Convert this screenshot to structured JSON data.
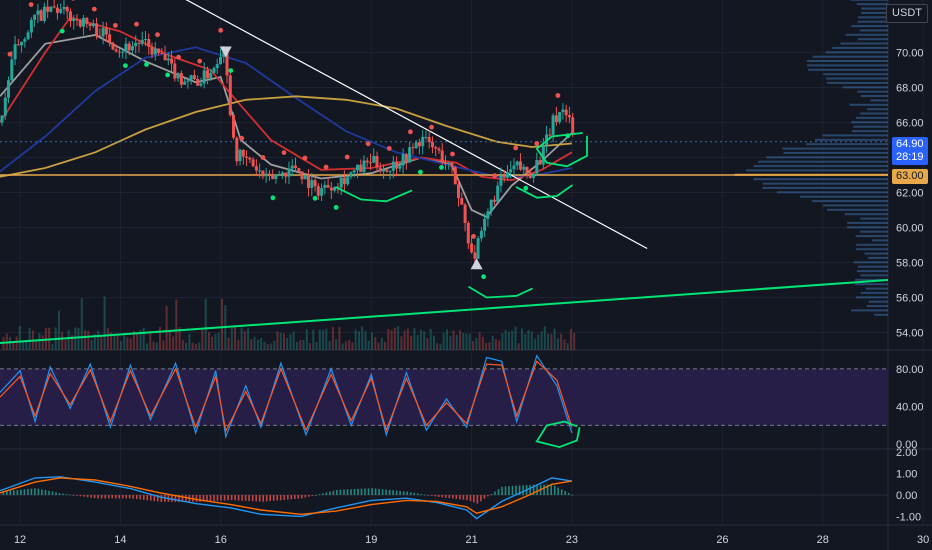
{
  "header": {
    "currency": "USDT"
  },
  "price_badges": {
    "last_price": "64.90",
    "countdown": "28:19",
    "level": "63.00"
  },
  "colors": {
    "background": "#131722",
    "grid": "#1e2230",
    "up": "#26a69a",
    "down": "#ef5350",
    "ma_fast": "#9e9e9e",
    "ma_mid": "#d32f2f",
    "ma_slow": "#1e3a9e",
    "ma_long": "#c9a040",
    "trendline": "#ffffff",
    "support": "#00e676",
    "level": "#e8a94b",
    "stoch_k": "#2196f3",
    "stoch_d": "#ff5722",
    "stoch_band": "#2a1f4d",
    "macd": "#2196f3",
    "signal": "#ff6d00",
    "annot": "#00e676",
    "profile": "#3d6fa8"
  },
  "chart_data": [
    {
      "type": "candlestick",
      "title": "",
      "ylim": [
        53,
        73
      ],
      "y_ticks": [
        "54.00",
        "56.00",
        "58.00",
        "60.00",
        "62.00",
        "64.00",
        "66.00",
        "68.00",
        "70.00"
      ],
      "x_range": [
        11.6,
        29.3
      ],
      "x_ticks": [
        {
          "x": 12,
          "label": "12"
        },
        {
          "x": 14,
          "label": "14"
        },
        {
          "x": 16,
          "label": "16"
        },
        {
          "x": 19,
          "label": "19"
        },
        {
          "x": 21,
          "label": "21"
        },
        {
          "x": 23,
          "label": "23"
        },
        {
          "x": 26,
          "label": "26"
        },
        {
          "x": 28,
          "label": "28"
        },
        {
          "x": 30,
          "label": "30"
        }
      ],
      "price_path": [
        [
          11.6,
          66.0
        ],
        [
          11.9,
          70.2
        ],
        [
          12.3,
          72.0
        ],
        [
          12.7,
          72.5
        ],
        [
          13.2,
          71.8
        ],
        [
          13.6,
          71.2
        ],
        [
          14.0,
          70.2
        ],
        [
          14.4,
          70.6
        ],
        [
          14.8,
          69.8
        ],
        [
          15.2,
          68.5
        ],
        [
          15.6,
          68.4
        ],
        [
          15.9,
          69.3
        ],
        [
          16.05,
          70.6
        ],
        [
          16.2,
          66.5
        ],
        [
          16.3,
          64.2
        ],
        [
          16.6,
          63.7
        ],
        [
          16.9,
          62.7
        ],
        [
          17.2,
          63.1
        ],
        [
          17.5,
          63.5
        ],
        [
          17.9,
          62.1
        ],
        [
          18.3,
          62.6
        ],
        [
          18.7,
          63.2
        ],
        [
          19.0,
          63.8
        ],
        [
          19.3,
          63.3
        ],
        [
          19.7,
          64.1
        ],
        [
          20.0,
          65.1
        ],
        [
          20.3,
          64.4
        ],
        [
          20.6,
          63.3
        ],
        [
          20.8,
          61.3
        ],
        [
          20.95,
          59.2
        ],
        [
          21.05,
          58.3
        ],
        [
          21.2,
          59.6
        ],
        [
          21.4,
          61.5
        ],
        [
          21.6,
          62.7
        ],
        [
          21.9,
          63.5
        ],
        [
          22.15,
          63.1
        ],
        [
          22.4,
          64.1
        ],
        [
          22.6,
          65.9
        ],
        [
          22.8,
          66.8
        ],
        [
          22.95,
          66.3
        ],
        [
          23.05,
          64.9
        ]
      ],
      "moving_averages": [
        {
          "key": "ma_fast",
          "points": [
            [
              11.6,
              67.5
            ],
            [
              12.5,
              70.5
            ],
            [
              13.5,
              71.0
            ],
            [
              14.5,
              69.5
            ],
            [
              15.5,
              68.3
            ],
            [
              16.0,
              68.6
            ],
            [
              16.4,
              65.0
            ],
            [
              17.0,
              63.6
            ],
            [
              18.0,
              62.8
            ],
            [
              19.0,
              63.1
            ],
            [
              20.0,
              64.0
            ],
            [
              20.6,
              63.6
            ],
            [
              21.0,
              61.0
            ],
            [
              21.3,
              60.6
            ],
            [
              21.8,
              62.4
            ],
            [
              22.4,
              63.8
            ],
            [
              23.0,
              65.4
            ]
          ]
        },
        {
          "key": "ma_mid",
          "points": [
            [
              11.6,
              66.0
            ],
            [
              12.5,
              70.0
            ],
            [
              13.0,
              72.0
            ],
            [
              14.0,
              71.2
            ],
            [
              15.0,
              69.8
            ],
            [
              15.8,
              69.0
            ],
            [
              16.3,
              67.3
            ],
            [
              17.0,
              65.0
            ],
            [
              18.0,
              63.3
            ],
            [
              19.0,
              63.4
            ],
            [
              20.0,
              64.0
            ],
            [
              20.7,
              63.7
            ],
            [
              21.2,
              62.9
            ],
            [
              21.8,
              62.7
            ],
            [
              22.4,
              63.3
            ],
            [
              23.0,
              64.3
            ]
          ]
        },
        {
          "key": "ma_slow",
          "points": [
            [
              11.6,
              63.2
            ],
            [
              12.5,
              65.2
            ],
            [
              13.5,
              67.8
            ],
            [
              14.5,
              69.7
            ],
            [
              15.5,
              70.3
            ],
            [
              16.5,
              69.4
            ],
            [
              17.5,
              67.4
            ],
            [
              18.5,
              65.5
            ],
            [
              19.5,
              64.3
            ],
            [
              20.5,
              63.6
            ],
            [
              21.5,
              62.9
            ],
            [
              22.3,
              63.0
            ],
            [
              23.0,
              63.4
            ]
          ]
        },
        {
          "key": "ma_long",
          "points": [
            [
              11.6,
              62.9
            ],
            [
              12.5,
              63.4
            ],
            [
              13.5,
              64.3
            ],
            [
              14.5,
              65.6
            ],
            [
              15.5,
              66.6
            ],
            [
              16.5,
              67.3
            ],
            [
              17.5,
              67.5
            ],
            [
              18.5,
              67.3
            ],
            [
              19.5,
              66.8
            ],
            [
              20.5,
              65.8
            ],
            [
              21.5,
              64.9
            ],
            [
              22.2,
              64.6
            ],
            [
              23.0,
              64.8
            ]
          ]
        }
      ],
      "trendline": [
        [
          15.0,
          73.5
        ],
        [
          24.5,
          58.8
        ]
      ],
      "support_line": [
        [
          11.6,
          53.4
        ],
        [
          29.3,
          57.0
        ]
      ],
      "horizontal_level": 63.0,
      "last_price": 64.9,
      "marker_down": [
        16.1,
        70.0
      ],
      "marker_up": [
        21.1,
        57.9
      ],
      "annotation_arcs": [
        [
          [
            18.3,
            62.3
          ],
          [
            18.8,
            61.6
          ],
          [
            19.3,
            61.5
          ],
          [
            19.8,
            62.1
          ]
        ],
        [
          [
            20.95,
            56.6
          ],
          [
            21.3,
            56.0
          ],
          [
            21.9,
            56.1
          ],
          [
            22.2,
            56.5
          ]
        ],
        [
          [
            21.9,
            62.3
          ],
          [
            22.3,
            61.7
          ],
          [
            22.7,
            61.8
          ],
          [
            23.0,
            62.4
          ]
        ]
      ],
      "annotation_loop": [
        [
          23.3,
          65.2
        ],
        [
          23.3,
          64.1
        ],
        [
          22.9,
          63.5
        ],
        [
          22.5,
          63.7
        ],
        [
          22.3,
          64.5
        ],
        [
          22.6,
          65.2
        ],
        [
          23.2,
          65.4
        ]
      ]
    },
    {
      "type": "line",
      "title": "",
      "ylim": [
        -4,
        100
      ],
      "y_ticks": [
        "80.00",
        "40.00",
        "0.00"
      ],
      "band": [
        20,
        80
      ],
      "series": [
        {
          "key": "stoch_k",
          "points": [
            [
              11.6,
              55
            ],
            [
              12.0,
              78
            ],
            [
              12.3,
              24
            ],
            [
              12.6,
              82
            ],
            [
              13.0,
              38
            ],
            [
              13.4,
              85
            ],
            [
              13.8,
              18
            ],
            [
              14.2,
              84
            ],
            [
              14.6,
              26
            ],
            [
              15.1,
              86
            ],
            [
              15.5,
              12
            ],
            [
              15.9,
              78
            ],
            [
              16.1,
              8
            ],
            [
              16.5,
              62
            ],
            [
              16.8,
              18
            ],
            [
              17.2,
              86
            ],
            [
              17.7,
              10
            ],
            [
              18.2,
              80
            ],
            [
              18.6,
              20
            ],
            [
              19.0,
              74
            ],
            [
              19.3,
              10
            ],
            [
              19.7,
              76
            ],
            [
              20.1,
              15
            ],
            [
              20.5,
              48
            ],
            [
              20.9,
              18
            ],
            [
              21.3,
              92
            ],
            [
              21.6,
              88
            ],
            [
              21.9,
              24
            ],
            [
              22.3,
              94
            ],
            [
              22.7,
              62
            ],
            [
              23.0,
              12
            ]
          ]
        },
        {
          "key": "stoch_d",
          "points": [
            [
              11.6,
              50
            ],
            [
              12.0,
              72
            ],
            [
              12.3,
              30
            ],
            [
              12.6,
              75
            ],
            [
              13.0,
              42
            ],
            [
              13.4,
              79
            ],
            [
              13.8,
              24
            ],
            [
              14.2,
              78
            ],
            [
              14.6,
              30
            ],
            [
              15.1,
              80
            ],
            [
              15.5,
              18
            ],
            [
              15.9,
              72
            ],
            [
              16.1,
              14
            ],
            [
              16.5,
              56
            ],
            [
              16.8,
              22
            ],
            [
              17.2,
              80
            ],
            [
              17.7,
              15
            ],
            [
              18.2,
              74
            ],
            [
              18.6,
              25
            ],
            [
              19.0,
              70
            ],
            [
              19.3,
              15
            ],
            [
              19.7,
              70
            ],
            [
              20.1,
              20
            ],
            [
              20.5,
              44
            ],
            [
              20.9,
              22
            ],
            [
              21.3,
              85
            ],
            [
              21.6,
              84
            ],
            [
              21.9,
              30
            ],
            [
              22.3,
              88
            ],
            [
              22.7,
              68
            ],
            [
              23.0,
              18
            ]
          ]
        }
      ],
      "annotation_loop": [
        [
          23.15,
          18
        ],
        [
          23.1,
          4
        ],
        [
          22.75,
          -3
        ],
        [
          22.3,
          3
        ],
        [
          22.5,
          20
        ],
        [
          22.85,
          24
        ],
        [
          23.1,
          19
        ]
      ]
    },
    {
      "type": "bar",
      "title": "",
      "ylim": [
        -1.4,
        2.1
      ],
      "y_ticks": [
        "2.00",
        "1.00",
        "0.00",
        "-1.00"
      ],
      "macd": [
        [
          11.6,
          0.2
        ],
        [
          12.3,
          0.8
        ],
        [
          12.8,
          0.85
        ],
        [
          13.5,
          0.6
        ],
        [
          14.2,
          0.3
        ],
        [
          14.8,
          -0.1
        ],
        [
          15.5,
          -0.4
        ],
        [
          16.2,
          -0.6
        ],
        [
          16.8,
          -0.9
        ],
        [
          17.6,
          -1.0
        ],
        [
          18.3,
          -0.6
        ],
        [
          19.0,
          -0.25
        ],
        [
          19.7,
          -0.15
        ],
        [
          20.3,
          -0.35
        ],
        [
          20.9,
          -0.7
        ],
        [
          21.1,
          -1.1
        ],
        [
          21.6,
          -0.3
        ],
        [
          22.2,
          0.35
        ],
        [
          22.6,
          0.8
        ],
        [
          23.0,
          0.65
        ]
      ],
      "signal": [
        [
          11.6,
          0.1
        ],
        [
          12.3,
          0.6
        ],
        [
          12.8,
          0.8
        ],
        [
          13.5,
          0.7
        ],
        [
          14.2,
          0.4
        ],
        [
          14.8,
          0.1
        ],
        [
          15.5,
          -0.2
        ],
        [
          16.2,
          -0.45
        ],
        [
          16.8,
          -0.7
        ],
        [
          17.6,
          -0.9
        ],
        [
          18.3,
          -0.75
        ],
        [
          19.0,
          -0.45
        ],
        [
          19.7,
          -0.25
        ],
        [
          20.3,
          -0.3
        ],
        [
          20.9,
          -0.55
        ],
        [
          21.1,
          -0.85
        ],
        [
          21.6,
          -0.55
        ],
        [
          22.2,
          0.05
        ],
        [
          22.6,
          0.5
        ],
        [
          23.0,
          0.65
        ]
      ]
    }
  ]
}
